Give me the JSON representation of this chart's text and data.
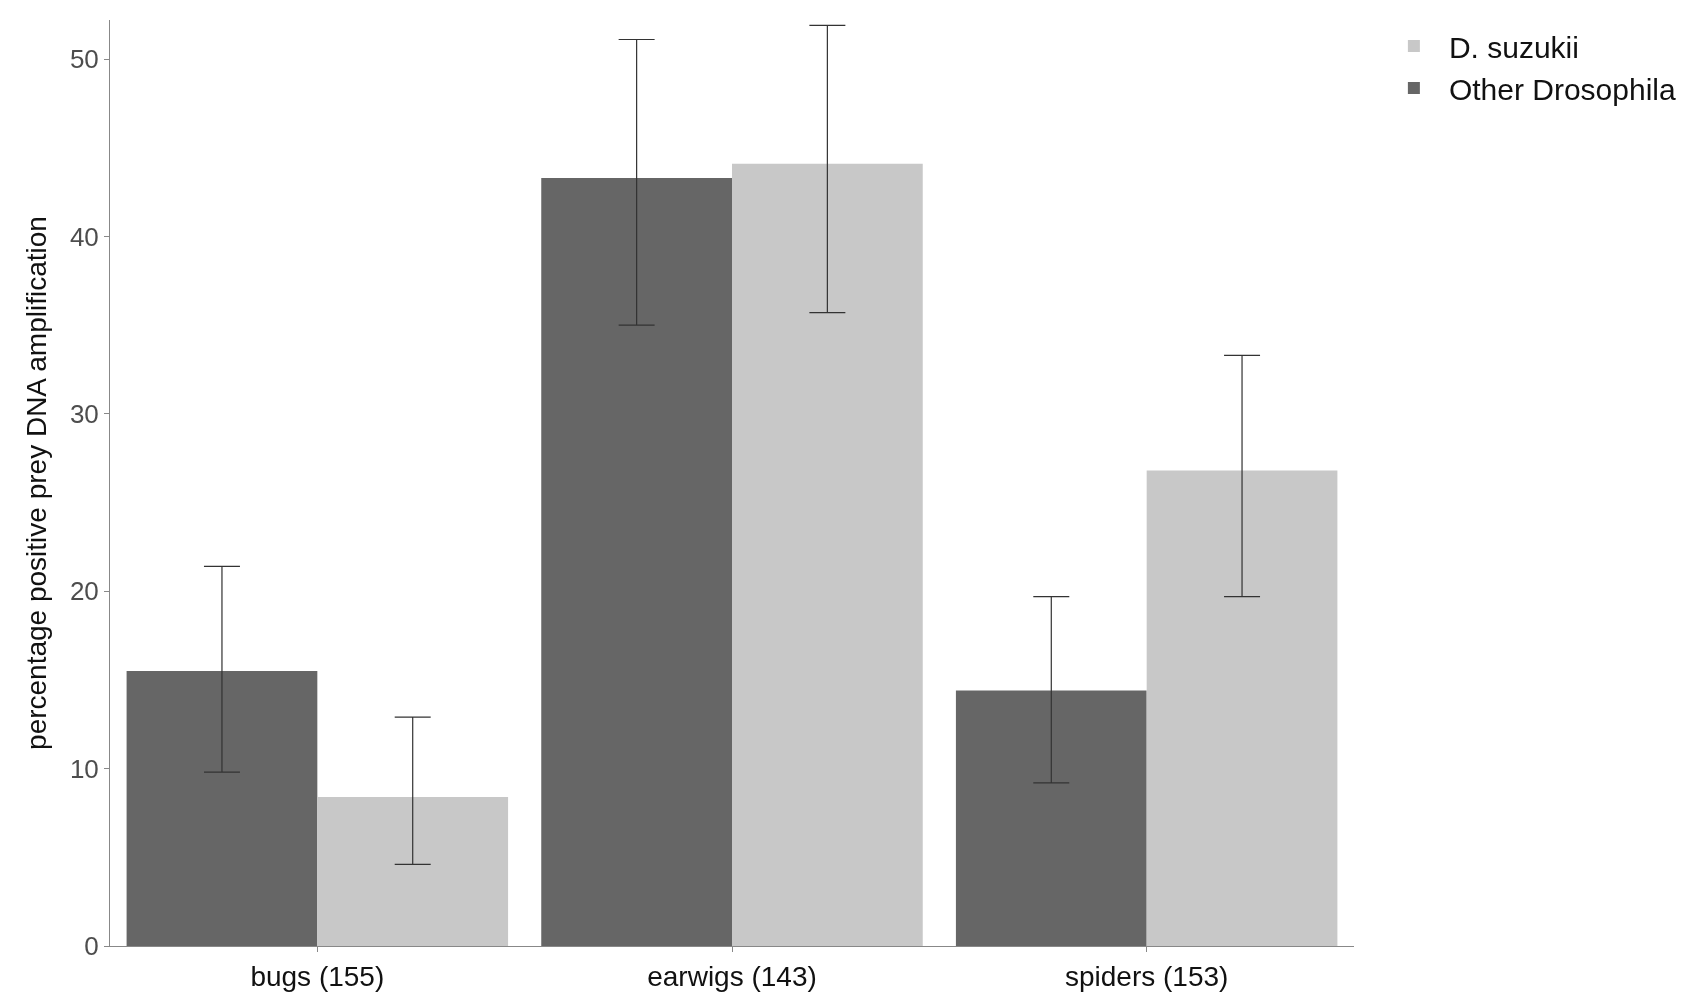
{
  "chart_data": {
    "type": "bar",
    "ylabel": "percentage positive prey DNA amplification",
    "categories": [
      "bugs (155)",
      "earwigs (143)",
      "spiders (153)"
    ],
    "series": [
      {
        "name": "Other Drosophila",
        "color": "#666666",
        "values": [
          15.5,
          43.3,
          14.4
        ],
        "errors": [
          [
            9.8,
            21.4
          ],
          [
            35.0,
            51.1
          ],
          [
            9.2,
            19.7
          ]
        ]
      },
      {
        "name": "D. suzukii",
        "color": "#c8c8c8",
        "values": [
          8.4,
          44.1,
          26.8
        ],
        "errors": [
          [
            4.6,
            12.9
          ],
          [
            35.7,
            51.9
          ],
          [
            19.7,
            33.3
          ]
        ]
      }
    ],
    "ylim": [
      0,
      52.2
    ],
    "yticks": [
      0,
      10,
      20,
      30,
      40,
      50
    ],
    "legend": "top right"
  }
}
